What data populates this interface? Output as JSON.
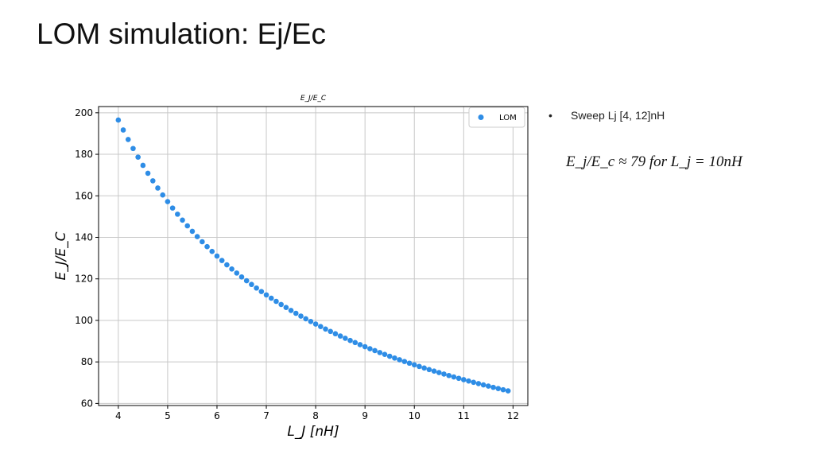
{
  "slide": {
    "title": "LOM simulation: Ej/Ec"
  },
  "bullets": [
    {
      "text": "Sweep Lj [4, 12]nH"
    }
  ],
  "equation": {
    "text": "E_j/E_c ≈ 79 for L_j = 10nH",
    "ratio_value": 79,
    "lj_value_nH": 10
  },
  "colors": {
    "marker": "#2e8de6",
    "grid": "#c8c8c8",
    "axis": "#000000"
  },
  "chart_data": {
    "type": "scatter",
    "title": "E_J/E_C",
    "xlabel": "L_J [nH]",
    "ylabel": "E_J/E_C",
    "xlim": [
      3.6,
      12.3
    ],
    "ylim": [
      59,
      203
    ],
    "xticks": [
      4,
      5,
      6,
      7,
      8,
      9,
      10,
      11,
      12
    ],
    "yticks": [
      60,
      80,
      100,
      120,
      140,
      160,
      180,
      200
    ],
    "grid": true,
    "legend": {
      "placement": "top-right",
      "entries": [
        "LOM"
      ]
    },
    "series": [
      {
        "name": "LOM",
        "x_start": 4.0,
        "x_step": 0.1,
        "count": 80,
        "relation": "y = 786 / x"
      }
    ]
  }
}
